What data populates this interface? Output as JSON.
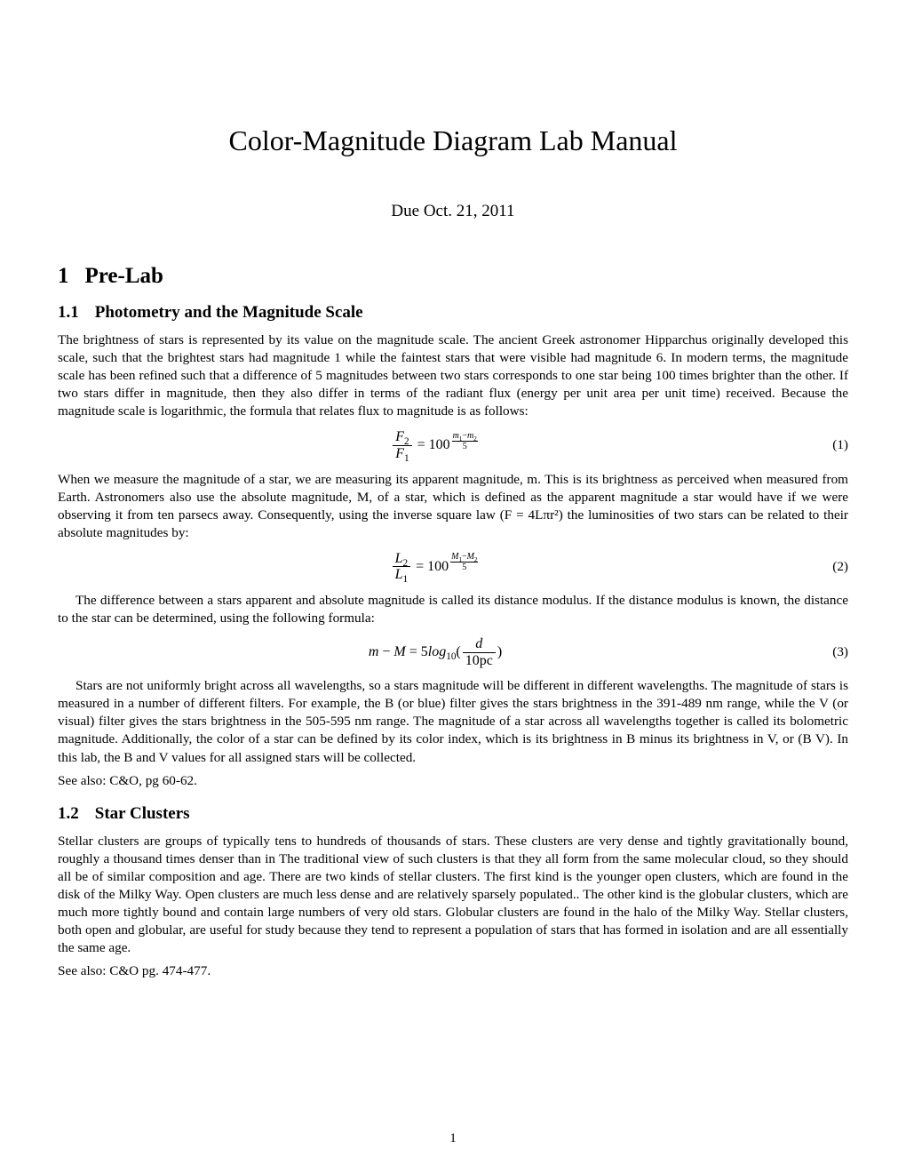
{
  "title": "Color-Magnitude Diagram Lab Manual",
  "due": "Due Oct. 21, 2011",
  "section1": {
    "num": "1",
    "title": "Pre-Lab"
  },
  "sub11": {
    "num": "1.1",
    "title": "Photometry and the Magnitude Scale",
    "p1": "The brightness of stars is represented by its value on the magnitude scale. The ancient Greek astronomer Hipparchus originally developed this scale, such that the brightest stars had magnitude 1 while the faintest stars that were visible had magnitude 6. In modern terms, the magnitude scale has been refined such that a difference of 5 magnitudes between two stars corresponds to one star being 100 times brighter than the other. If two stars differ in magnitude, then they also differ in terms of the radiant flux (energy per unit area per unit time) received. Because the magnitude scale is logarithmic, the formula that relates flux to magnitude is as follows:",
    "p2": "When we measure the magnitude of a star, we are measuring its apparent magnitude, m. This is its brightness as perceived when measured from Earth. Astronomers also use the absolute magnitude, M, of a star, which is defined as the apparent magnitude a star would have if we were observing it from ten parsecs away. Consequently, using the inverse square law (F = 4Lπr²) the luminosities of two stars can be related to their absolute magnitudes by:",
    "p3": "The difference between a stars apparent and absolute magnitude is called its distance modulus. If the distance modulus is known, the distance to the star can be determined, using the following formula:",
    "p4": "Stars are not uniformly bright across all wavelengths, so a stars magnitude will be different in different wavelengths. The magnitude of stars is measured in a number of different filters. For example, the B (or blue) filter gives the stars brightness in the  391-489 nm range, while the V (or visual) filter gives the stars brightness in the  505-595 nm range. The magnitude of a star across all wavelengths together is called its bolometric magnitude. Additionally, the color of a star can be defined by its color index, which is its brightness in B minus its brightness in V, or (B  V). In this lab, the B and V values for all assigned stars will be collected.",
    "see": "See also: C&O, pg 60-62."
  },
  "eq1": {
    "num": "(1)"
  },
  "eq2": {
    "num": "(2)"
  },
  "eq3": {
    "num": "(3)"
  },
  "sub12": {
    "num": "1.2",
    "title": "Star Clusters",
    "p1": "Stellar clusters are groups of typically tens to hundreds of thousands of stars. These clusters are very dense and tightly gravitationally bound, roughly a thousand times denser than in The traditional view of such clusters is that they all form from the same molecular cloud, so they should all be of similar composition and age. There are two kinds of stellar clusters. The first kind is the younger open clusters, which are found in the disk of the Milky Way. Open clusters are much less dense and are relatively sparsely populated.. The other kind is the globular clusters, which are much more tightly bound and contain large numbers of very old stars. Globular clusters are found in the halo of the Milky Way. Stellar clusters, both open and globular, are useful for study because they tend to represent a population of stars that has formed in isolation and are all essentially the same age.",
    "see": "See also: C&O pg. 474-477."
  },
  "pagenum": "1"
}
